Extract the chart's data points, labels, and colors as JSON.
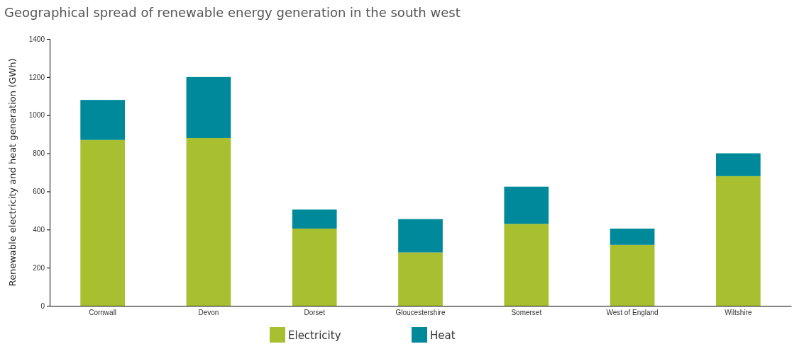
{
  "chart_data": {
    "type": "bar",
    "stacked": true,
    "title": "Geographical spread of renewable energy generation in the south west",
    "ylabel": "Renewable electricity and heat generation (GWh)",
    "categories": [
      "Cornwall",
      "Devon",
      "Dorset",
      "Gloucestershire",
      "Somerset",
      "West of England",
      "Wiltshire"
    ],
    "series": [
      {
        "name": "Electricity",
        "color": "#a8c030",
        "values": [
          870,
          880,
          405,
          280,
          430,
          320,
          680
        ]
      },
      {
        "name": "Heat",
        "color": "#00899a",
        "values": [
          210,
          320,
          100,
          175,
          195,
          85,
          120
        ]
      }
    ],
    "ylim": [
      0,
      1400
    ],
    "yticks": [
      0,
      200,
      400,
      600,
      800,
      1000,
      1200,
      1400
    ],
    "grid": false,
    "legend": "bottom"
  }
}
